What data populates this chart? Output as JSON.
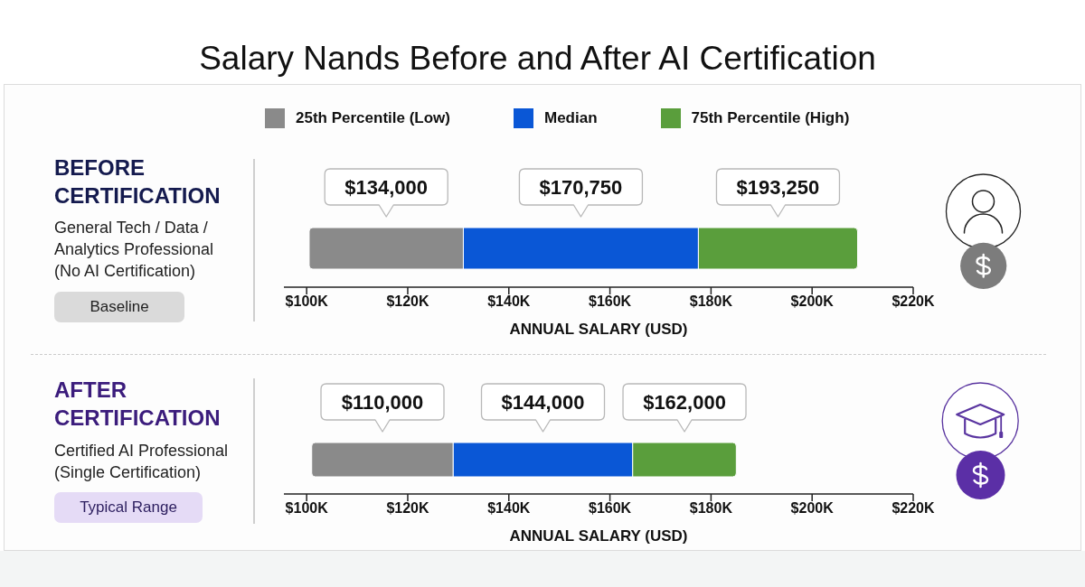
{
  "chart_data": [
    {
      "type": "bar",
      "orientation": "horizontal",
      "title": "Salary Nands Before and After AI Certification",
      "categories": [
        "BEFORE CERTIFICATION"
      ],
      "series": [
        {
          "name": "25th Percentile (Low)",
          "color": "#8a8a8a",
          "base": [
            100500
          ],
          "values": [
            30500
          ]
        },
        {
          "name": "Median",
          "color": "#0a57d6",
          "base": [
            131000
          ],
          "values": [
            46500
          ]
        },
        {
          "name": "75th Percentile (High)",
          "color": "#5a9e3c",
          "base": [
            177500
          ],
          "values": [
            31500
          ]
        }
      ],
      "xlabel": "ANNUAL SALARY (USD)",
      "xlim": [
        95500,
        220000
      ],
      "xticks": [
        {
          "value": 100000,
          "label": "$100K"
        },
        {
          "value": 120000,
          "label": "$120K"
        },
        {
          "value": 140000,
          "label": "$140K"
        },
        {
          "value": 160000,
          "label": "$160K"
        },
        {
          "value": 180000,
          "label": "$180K"
        },
        {
          "value": 200000,
          "label": "$200K"
        },
        {
          "value": 220000,
          "label": "$220K"
        }
      ],
      "legend": "top",
      "annotations": [
        "General Tech / Data / Analytics Professional (No AI Certification)",
        "Baseline",
        "$134,000",
        "$170,750",
        "$193,250"
      ]
    },
    {
      "type": "bar",
      "orientation": "horizontal",
      "categories": [
        "AFTER CERTIFICATION"
      ],
      "series": [
        {
          "color": "#8a8a8a",
          "base": [
            101000
          ],
          "values": [
            28000
          ]
        },
        {
          "color": "#0a57d6",
          "base": [
            129000
          ],
          "values": [
            35500
          ]
        },
        {
          "color": "#5a9e3c",
          "base": [
            164500
          ],
          "values": [
            20500
          ]
        }
      ],
      "xlabel": "ANNUAL SALARY (USD)",
      "xlim": [
        95500,
        220000
      ],
      "xticks": [
        {
          "value": 100000,
          "label": "$100K"
        },
        {
          "value": 120000,
          "label": "$120K"
        },
        {
          "value": 140000,
          "label": "$140K"
        },
        {
          "value": 160000,
          "label": "$160K"
        },
        {
          "value": 180000,
          "label": "$180K"
        },
        {
          "value": 200000,
          "label": "$200K"
        },
        {
          "value": 220000,
          "label": "$220K"
        }
      ],
      "annotations": [
        "Certified AI Professional (Single Certification)",
        "Typical Range",
        "$110,000",
        "$144,000",
        "$162,000"
      ]
    }
  ]
}
